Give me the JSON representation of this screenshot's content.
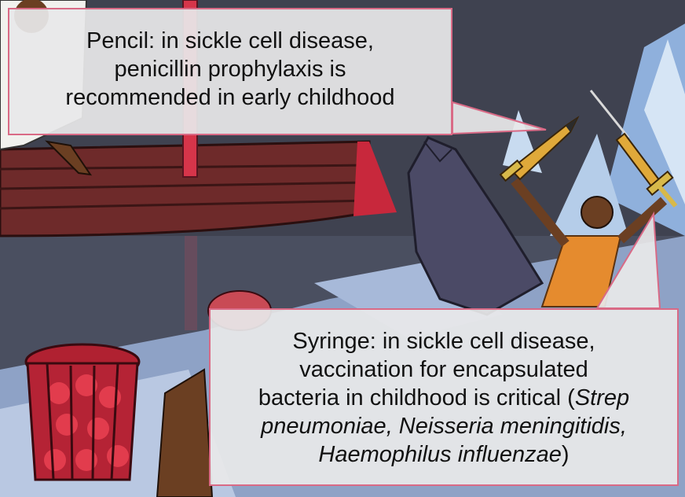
{
  "callouts": {
    "top": {
      "lines": [
        "Pencil: in sickle cell disease,",
        "penicillin prophylaxis is",
        "recommended in early childhood"
      ]
    },
    "bottom": {
      "line1": "Syringe: in sickle cell disease,",
      "line2": "vaccination for encapsulated",
      "line3_plain": "bacteria in childhood is critical (",
      "line3_italic": "Strep",
      "line4_italic": "pneumoniae, Neisseria meningitidis,",
      "line5_italic": "Haemophilus influenzae",
      "line5_end": ")"
    }
  },
  "colors": {
    "callout_border": "#d96a86",
    "callout_fill": "#e8e8ea",
    "ship_hull": "#6e2a2a",
    "ship_mast": "#d6354a",
    "wolf": "#4b4a66",
    "ice": "#9db3d6"
  },
  "icons": [
    "pencil-sword-icon",
    "syringe-sword-icon",
    "red-ball-cage-icon"
  ]
}
